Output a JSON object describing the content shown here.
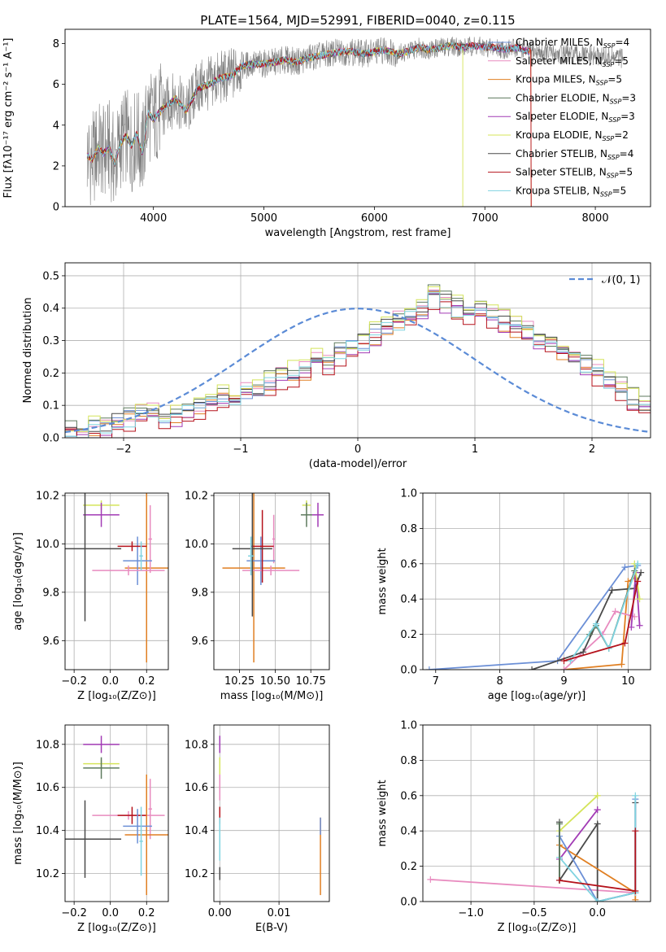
{
  "title": "PLATE=1564, MJD=52991, FIBERID=0040, z=0.115",
  "colors": {
    "chabrier_miles": "#6b8fd6",
    "salpeter_miles": "#e88bbf",
    "kroupa_miles": "#e07f22",
    "chabrier_elodie": "#5e7a5e",
    "salpeter_elodie": "#a23bb5",
    "kroupa_elodie": "#d4e45a",
    "chabrier_stelib": "#4a4a4a",
    "salpeter_stelib": "#b5121b",
    "kroupa_stelib": "#7fd3e0",
    "gaussian": "#5b8bd6",
    "spectrum": "#808080"
  },
  "chart_data": [
    {
      "type": "line",
      "panel": "spectrum",
      "xlabel": "wavelength [Angstrom, rest frame]",
      "ylabel": "Flux [fλ10⁻¹⁷ erg cm⁻² s⁻¹ A⁻¹]",
      "xlim": [
        3200,
        8500
      ],
      "ylim": [
        0,
        8.7
      ],
      "xticks": [
        "4000",
        "5000",
        "6000",
        "7000",
        "8000"
      ],
      "yticks": [
        "0",
        "2",
        "4",
        "6",
        "8"
      ],
      "grid": false,
      "legend_position": "top-right",
      "legend": [
        {
          "label": "Chabrier MILES, N",
          "sub": "SSP",
          "tail": "=4",
          "color": "chabrier_miles"
        },
        {
          "label": "Salpeter MILES, N",
          "sub": "SSP",
          "tail": "=5",
          "color": "salpeter_miles"
        },
        {
          "label": "Kroupa MILES, N",
          "sub": "SSP",
          "tail": "=5",
          "color": "kroupa_miles"
        },
        {
          "label": "Chabrier ELODIE, N",
          "sub": "SSP",
          "tail": "=3",
          "color": "chabrier_elodie"
        },
        {
          "label": "Salpeter ELODIE, N",
          "sub": "SSP",
          "tail": "=3",
          "color": "salpeter_elodie"
        },
        {
          "label": "Kroupa ELODIE, N",
          "sub": "SSP",
          "tail": "=2",
          "color": "kroupa_elodie"
        },
        {
          "label": "Chabrier STELIB, N",
          "sub": "SSP",
          "tail": "=4",
          "color": "chabrier_stelib"
        },
        {
          "label": "Salpeter STELIB, N",
          "sub": "SSP",
          "tail": "=5",
          "color": "salpeter_stelib"
        },
        {
          "label": "Kroupa STELIB, N",
          "sub": "SSP",
          "tail": "=5",
          "color": "kroupa_stelib"
        }
      ],
      "model_x": [
        3400,
        3450,
        3500,
        3550,
        3600,
        3650,
        3700,
        3750,
        3800,
        3850,
        3900,
        3950,
        4000,
        4100,
        4200,
        4300,
        4400,
        4500,
        4600,
        4700,
        4800,
        4900,
        5000,
        5100,
        5200,
        5300,
        5400,
        5500,
        5600,
        5700,
        5800,
        5900,
        6000,
        6100,
        6200,
        6300,
        6400,
        6500,
        6600,
        6700,
        6800,
        6900,
        7000,
        7100,
        7200,
        7300,
        7400
      ],
      "model_y": [
        2.5,
        2.3,
        2.9,
        2.6,
        2.9,
        2.1,
        3.1,
        3.5,
        3.0,
        3.6,
        2.6,
        4.6,
        4.3,
        4.9,
        5.3,
        4.7,
        5.8,
        6.0,
        6.3,
        6.4,
        6.9,
        7.0,
        7.0,
        7.1,
        7.2,
        7.1,
        7.3,
        7.4,
        7.5,
        7.6,
        7.6,
        7.5,
        7.6,
        7.7,
        7.5,
        7.6,
        7.8,
        7.7,
        7.8,
        7.9,
        7.8,
        7.9,
        7.8,
        7.8,
        7.7,
        7.8,
        7.6
      ],
      "observed_x_range": [
        3400,
        8250
      ]
    },
    {
      "type": "line",
      "panel": "residual-distribution",
      "xlabel": "(data-model)/error",
      "ylabel": "Normed distribution",
      "xlim": [
        -2.5,
        2.5
      ],
      "ylim": [
        0,
        0.54
      ],
      "xticks": [
        "−2",
        "−1",
        "0",
        "1",
        "2"
      ],
      "yticks": [
        "0.0",
        "0.1",
        "0.2",
        "0.3",
        "0.4",
        "0.5"
      ],
      "grid": true,
      "legend_position": "top-right",
      "legend": [
        {
          "label": "𝒩(0, 1)",
          "color": "gaussian",
          "style": "dashed"
        }
      ],
      "bin_edges_start": -2.5,
      "bin_width": 0.1,
      "hist_values": [
        0.02,
        0.02,
        0.03,
        0.04,
        0.05,
        0.06,
        0.07,
        0.08,
        0.06,
        0.07,
        0.08,
        0.09,
        0.11,
        0.13,
        0.12,
        0.14,
        0.15,
        0.17,
        0.19,
        0.2,
        0.21,
        0.24,
        0.23,
        0.26,
        0.28,
        0.3,
        0.32,
        0.34,
        0.36,
        0.38,
        0.4,
        0.44,
        0.42,
        0.4,
        0.38,
        0.39,
        0.37,
        0.36,
        0.34,
        0.33,
        0.31,
        0.29,
        0.27,
        0.25,
        0.22,
        0.2,
        0.17,
        0.15,
        0.12,
        0.1
      ],
      "series_hist": [
        {
          "color": "chabrier_miles",
          "offset": 0.0
        },
        {
          "color": "salpeter_miles",
          "offset": 0.01
        },
        {
          "color": "kroupa_miles",
          "offset": -0.01
        },
        {
          "color": "chabrier_elodie",
          "offset": 0.015
        },
        {
          "color": "salpeter_elodie",
          "offset": -0.015
        },
        {
          "color": "kroupa_elodie",
          "offset": 0.02
        },
        {
          "color": "chabrier_stelib",
          "offset": 0.005
        },
        {
          "color": "salpeter_stelib",
          "offset": -0.02
        },
        {
          "color": "kroupa_stelib",
          "offset": -0.005
        }
      ]
    },
    {
      "type": "scatter",
      "panel": "age-vs-z",
      "xlabel": "Z [log₁₀(Z/Z⊙)]",
      "ylabel": "age  [log₁₀(age/yr)]",
      "xlim": [
        -0.25,
        0.32
      ],
      "ylim": [
        9.48,
        10.21
      ],
      "xticks": [
        "−0.2",
        "0.0",
        "0.2"
      ],
      "xtick_values": [
        -0.2,
        0.0,
        0.2
      ],
      "yticks": [
        "9.6",
        "9.8",
        "10.0",
        "10.2"
      ],
      "ytick_values": [
        9.6,
        9.8,
        10.0,
        10.2
      ],
      "grid": true,
      "points": [
        {
          "x": -0.05,
          "y": 10.16,
          "xerr": 0.1,
          "yerr": 0.02,
          "color": "kroupa_elodie"
        },
        {
          "x": -0.05,
          "y": 10.12,
          "xerr": 0.1,
          "yerr": 0.05,
          "color": "salpeter_elodie"
        },
        {
          "x": 0.2,
          "y": 9.9,
          "xerr": 0.12,
          "yerr": 0.39,
          "color": "kroupa_miles"
        },
        {
          "x": 0.22,
          "y": 10.02,
          "xerr": 0.01,
          "yerr": 0.14,
          "color": "salpeter_miles"
        },
        {
          "x": 0.15,
          "y": 9.93,
          "xerr": 0.08,
          "yerr": 0.1,
          "color": "chabrier_miles"
        },
        {
          "x": 0.1,
          "y": 9.89,
          "xerr": 0.2,
          "yerr": 0.02,
          "color": "salpeter_miles"
        },
        {
          "x": 0.12,
          "y": 9.99,
          "xerr": 0.08,
          "yerr": 0.02,
          "color": "salpeter_stelib"
        },
        {
          "x": -0.14,
          "y": 9.98,
          "xerr": 0.2,
          "yerr": 0.3,
          "color": "chabrier_stelib"
        },
        {
          "x": 0.17,
          "y": 9.95,
          "xerr": 0.01,
          "yerr": 0.06,
          "color": "kroupa_stelib"
        }
      ]
    },
    {
      "type": "scatter",
      "panel": "age-vs-mass",
      "xlabel": "mass [log₁₀(M/M⊙)]",
      "ylabel": "",
      "xlim": [
        10.07,
        10.88
      ],
      "ylim": [
        9.48,
        10.21
      ],
      "xticks": [
        "10.25",
        "10.50",
        "10.75"
      ],
      "xtick_values": [
        10.25,
        10.5,
        10.75
      ],
      "yticks": [
        "9.6",
        "9.8",
        "10.0",
        "10.2"
      ],
      "ytick_values": [
        9.6,
        9.8,
        10.0,
        10.2
      ],
      "grid": true,
      "points": [
        {
          "x": 10.72,
          "y": 10.16,
          "xerr": 0.03,
          "yerr": 0.02,
          "color": "kroupa_elodie"
        },
        {
          "x": 10.8,
          "y": 10.12,
          "xerr": 0.04,
          "yerr": 0.05,
          "color": "salpeter_elodie"
        },
        {
          "x": 10.72,
          "y": 10.12,
          "xerr": 0.04,
          "yerr": 0.05,
          "color": "chabrier_elodie"
        },
        {
          "x": 10.35,
          "y": 9.9,
          "xerr": 0.22,
          "yerr": 0.39,
          "color": "kroupa_miles"
        },
        {
          "x": 10.49,
          "y": 10.02,
          "xerr": 0.01,
          "yerr": 0.1,
          "color": "salpeter_miles"
        },
        {
          "x": 10.4,
          "y": 9.93,
          "xerr": 0.1,
          "yerr": 0.1,
          "color": "chabrier_miles"
        },
        {
          "x": 10.47,
          "y": 9.89,
          "xerr": 0.2,
          "yerr": 0.02,
          "color": "salpeter_miles"
        },
        {
          "x": 10.41,
          "y": 9.99,
          "xerr": 0.08,
          "yerr": 0.15,
          "color": "salpeter_stelib"
        },
        {
          "x": 10.34,
          "y": 9.98,
          "xerr": 0.14,
          "yerr": 0.28,
          "color": "chabrier_stelib"
        },
        {
          "x": 10.33,
          "y": 9.95,
          "xerr": 0.02,
          "yerr": 0.08,
          "color": "kroupa_stelib"
        }
      ]
    },
    {
      "type": "line",
      "panel": "mass-weight-vs-age",
      "xlabel": "age  [log₁₀(age/yr)]",
      "ylabel": "mass weight",
      "xlim": [
        6.8,
        10.35
      ],
      "ylim": [
        0,
        1.0
      ],
      "xticks": [
        "7",
        "8",
        "9",
        "10"
      ],
      "xtick_values": [
        7,
        8,
        9,
        10
      ],
      "yticks": [
        "0.0",
        "0.2",
        "0.4",
        "0.6",
        "0.8",
        "1.0"
      ],
      "ytick_values": [
        0,
        0.2,
        0.4,
        0.6,
        0.8,
        1.0
      ],
      "grid": true,
      "series": [
        {
          "color": "chabrier_miles",
          "x": [
            6.9,
            8.9,
            9.95,
            10.15
          ],
          "y": [
            0.0,
            0.05,
            0.58,
            0.59
          ]
        },
        {
          "color": "kroupa_miles",
          "x": [
            9.0,
            9.9,
            10.0,
            10.1
          ],
          "y": [
            0.0,
            0.03,
            0.5,
            0.52
          ]
        },
        {
          "color": "salpeter_miles",
          "x": [
            9.0,
            9.6,
            9.8,
            10.1
          ],
          "y": [
            0.0,
            0.2,
            0.33,
            0.3
          ]
        },
        {
          "color": "chabrier_stelib",
          "x": [
            8.5,
            9.3,
            9.75,
            10.1,
            10.2
          ],
          "y": [
            0.0,
            0.1,
            0.45,
            0.46,
            0.55
          ]
        },
        {
          "color": "salpeter_elodie",
          "x": [
            10.05,
            10.12,
            10.18
          ],
          "y": [
            0.24,
            0.55,
            0.25
          ]
        },
        {
          "color": "kroupa_elodie",
          "x": [
            10.1,
            10.18
          ],
          "y": [
            0.6,
            0.4
          ]
        },
        {
          "color": "chabrier_elodie",
          "x": [
            9.4,
            9.5,
            9.7,
            10.1
          ],
          "y": [
            0.2,
            0.25,
            0.12,
            0.56
          ]
        },
        {
          "color": "kroupa_stelib",
          "x": [
            9.1,
            9.5,
            9.7,
            10.15
          ],
          "y": [
            0.05,
            0.26,
            0.12,
            0.6
          ]
        },
        {
          "color": "salpeter_stelib",
          "x": [
            9.0,
            9.95,
            10.15
          ],
          "y": [
            0.05,
            0.15,
            0.5
          ]
        }
      ]
    },
    {
      "type": "scatter",
      "panel": "mass-vs-z",
      "xlabel": "Z [log₁₀(Z/Z⊙)]",
      "ylabel": "mass [log₁₀(M/M⊙)]",
      "xlim": [
        -0.25,
        0.32
      ],
      "ylim": [
        10.07,
        10.89
      ],
      "xticks": [
        "−0.2",
        "0.0",
        "0.2"
      ],
      "xtick_values": [
        -0.2,
        0.0,
        0.2
      ],
      "yticks": [
        "10.2",
        "10.4",
        "10.6",
        "10.8"
      ],
      "ytick_values": [
        10.2,
        10.4,
        10.6,
        10.8
      ],
      "grid": true,
      "points": [
        {
          "x": -0.05,
          "y": 10.8,
          "xerr": 0.1,
          "yerr": 0.04,
          "color": "salpeter_elodie"
        },
        {
          "x": -0.05,
          "y": 10.71,
          "xerr": 0.1,
          "yerr": 0.02,
          "color": "kroupa_elodie"
        },
        {
          "x": -0.05,
          "y": 10.69,
          "xerr": 0.1,
          "yerr": 0.05,
          "color": "chabrier_elodie"
        },
        {
          "x": 0.1,
          "y": 10.47,
          "xerr": 0.2,
          "yerr": 0.02,
          "color": "salpeter_miles"
        },
        {
          "x": 0.12,
          "y": 10.47,
          "xerr": 0.08,
          "yerr": 0.04,
          "color": "salpeter_stelib"
        },
        {
          "x": 0.22,
          "y": 10.5,
          "xerr": 0.01,
          "yerr": 0.14,
          "color": "salpeter_miles"
        },
        {
          "x": 0.2,
          "y": 10.38,
          "xerr": 0.12,
          "yerr": 0.28,
          "color": "kroupa_miles"
        },
        {
          "x": 0.15,
          "y": 10.42,
          "xerr": 0.08,
          "yerr": 0.08,
          "color": "chabrier_miles"
        },
        {
          "x": -0.14,
          "y": 10.36,
          "xerr": 0.2,
          "yerr": 0.18,
          "color": "chabrier_stelib"
        },
        {
          "x": 0.17,
          "y": 10.35,
          "xerr": 0.01,
          "yerr": 0.16,
          "color": "kroupa_stelib"
        }
      ]
    },
    {
      "type": "scatter",
      "panel": "mass-vs-ebv",
      "xlabel": "E(B-V)",
      "ylabel": "",
      "xlim": [
        -0.001,
        0.0185
      ],
      "ylim": [
        10.07,
        10.89
      ],
      "xticks": [
        "0.00",
        "0.01"
      ],
      "xtick_values": [
        0.0,
        0.01
      ],
      "yticks": [
        "10.2",
        "10.4",
        "10.6",
        "10.8"
      ],
      "ytick_values": [
        10.2,
        10.4,
        10.6,
        10.8
      ],
      "grid": true,
      "points": [
        {
          "x": 0.0,
          "y": 10.8,
          "xerr": 0,
          "yerr": 0.04,
          "color": "salpeter_elodie"
        },
        {
          "x": 0.0,
          "y": 10.7,
          "xerr": 0,
          "yerr": 0.04,
          "color": "kroupa_elodie"
        },
        {
          "x": 0.0,
          "y": 10.6,
          "xerr": 0,
          "yerr": 0.06,
          "color": "salpeter_miles"
        },
        {
          "x": 0.0,
          "y": 10.47,
          "xerr": 0,
          "yerr": 0.04,
          "color": "salpeter_stelib"
        },
        {
          "x": 0.0,
          "y": 10.36,
          "xerr": 0,
          "yerr": 0.1,
          "color": "kroupa_stelib"
        },
        {
          "x": 0.0,
          "y": 10.2,
          "xerr": 0,
          "yerr": 0.03,
          "color": "chabrier_stelib"
        },
        {
          "x": 0.017,
          "y": 10.28,
          "xerr": 0,
          "yerr": 0.18,
          "color": "kroupa_miles"
        },
        {
          "x": 0.017,
          "y": 10.42,
          "xerr": 0,
          "yerr": 0.04,
          "color": "chabrier_miles"
        }
      ]
    },
    {
      "type": "line",
      "panel": "mass-weight-vs-z",
      "xlabel": "Z [log₁₀(Z/Z⊙)]",
      "ylabel": "mass weight",
      "xlim": [
        -1.38,
        0.42
      ],
      "ylim": [
        0,
        1.0
      ],
      "xticks": [
        "−1.0",
        "−0.5",
        "0.0"
      ],
      "xtick_values": [
        -1.0,
        -0.5,
        0.0
      ],
      "yticks": [
        "0.0",
        "0.2",
        "0.4",
        "0.6",
        "0.8",
        "1.0"
      ],
      "ytick_values": [
        0,
        0.2,
        0.4,
        0.6,
        0.8,
        1.0
      ],
      "grid": true,
      "series": [
        {
          "color": "salpeter_miles",
          "x": [
            -1.32,
            0.3
          ],
          "y": [
            0.125,
            0.05
          ]
        },
        {
          "color": "kroupa_elodie",
          "x": [
            -0.3,
            0.0,
            0.0
          ],
          "y": [
            0.4,
            0.6,
            0.6
          ]
        },
        {
          "color": "salpeter_elodie",
          "x": [
            -0.3,
            0.0,
            0.0
          ],
          "y": [
            0.24,
            0.52,
            0.52
          ]
        },
        {
          "color": "chabrier_stelib",
          "x": [
            -0.3,
            -0.3,
            0.0,
            0.0,
            0.3,
            0.3
          ],
          "y": [
            0.45,
            0.12,
            0.44,
            0.0,
            0.05,
            0.56
          ]
        },
        {
          "color": "kroupa_miles",
          "x": [
            -0.3,
            0.3,
            0.3
          ],
          "y": [
            0.32,
            0.05,
            0.01
          ]
        },
        {
          "color": "chabrier_miles",
          "x": [
            -0.3,
            0.0,
            0.3,
            0.3
          ],
          "y": [
            0.37,
            0.0,
            0.05,
            0.58
          ]
        },
        {
          "color": "kroupa_stelib",
          "x": [
            -0.3,
            0.0,
            0.3,
            0.3
          ],
          "y": [
            0.25,
            0.0,
            0.05,
            0.6
          ]
        },
        {
          "color": "chabrier_elodie",
          "x": [
            -0.3,
            -0.3
          ],
          "y": [
            0.12,
            0.44
          ]
        },
        {
          "color": "salpeter_stelib",
          "x": [
            -0.3,
            0.3,
            0.3
          ],
          "y": [
            0.12,
            0.06,
            0.4
          ]
        }
      ]
    }
  ]
}
